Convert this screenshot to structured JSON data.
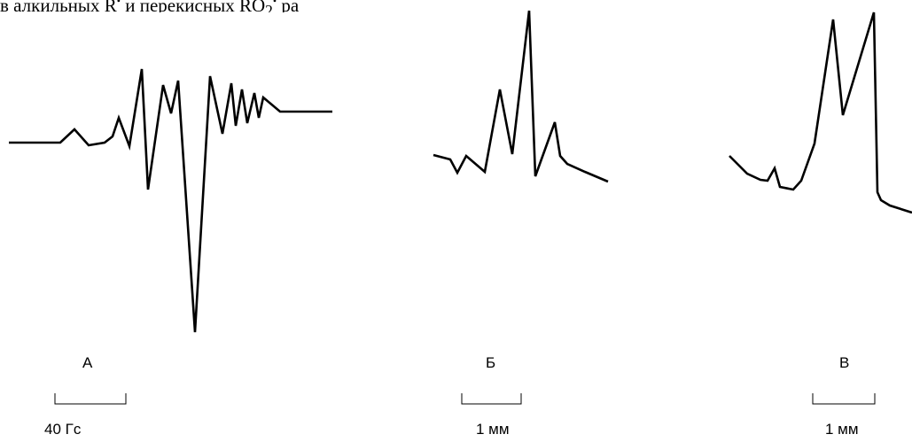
{
  "caption": {
    "text_before": "в алкильных R",
    "sup_1": "•",
    "text_middle": " и перекисных RO",
    "sub_1": "2",
    "sup_2": "•",
    "text_after": " ра"
  },
  "panels": [
    {
      "letter": "А",
      "scale_label": "40 Гс"
    },
    {
      "letter": "Б",
      "scale_label": "1 мм"
    },
    {
      "letter": "В",
      "scale_label": "1 мм"
    }
  ],
  "colors": {
    "ink": "#000000",
    "background": "#ffffff"
  }
}
